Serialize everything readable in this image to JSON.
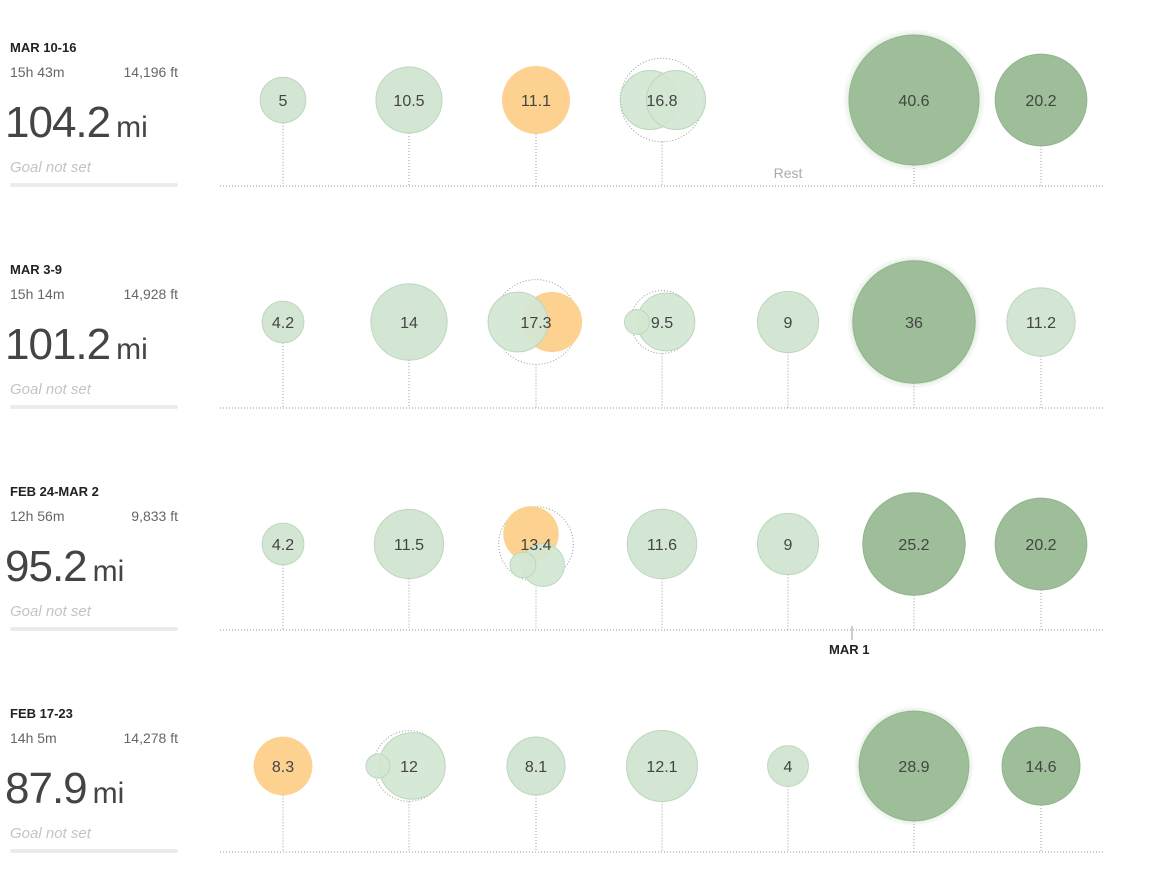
{
  "colors": {
    "light_green": "#d3e6d3",
    "light_green_stroke": "#bcd7bc",
    "dark_green": "#9dbe98",
    "dark_green_stroke": "#8fb58a",
    "orange": "#fdd290",
    "text": "#444444",
    "axis": "#9a9a9a",
    "goal_text": "#c4c4c4"
  },
  "weeks": [
    {
      "label": "MAR 10-16",
      "time": "15h 43m",
      "elevation": "14,196 ft",
      "distance": "104.2",
      "unit": "mi",
      "goal": "Goal not set",
      "days": [
        {
          "label": "5",
          "runs": [
            {
              "miles": 5,
              "type": "easy"
            }
          ]
        },
        {
          "label": "10.5",
          "runs": [
            {
              "miles": 10.5,
              "type": "easy"
            }
          ]
        },
        {
          "label": "11.1",
          "runs": [
            {
              "miles": 11.1,
              "type": "workout"
            }
          ]
        },
        {
          "label": "16.8",
          "runs": [
            {
              "miles": 8.4,
              "type": "easy"
            },
            {
              "miles": 8.4,
              "type": "easy"
            }
          ]
        },
        {
          "label": "Rest",
          "rest": true
        },
        {
          "label": "40.6",
          "runs": [
            {
              "miles": 40.6,
              "type": "long",
              "glow": true
            }
          ]
        },
        {
          "label": "20.2",
          "runs": [
            {
              "miles": 20.2,
              "type": "long"
            }
          ]
        }
      ]
    },
    {
      "label": "MAR 3-9",
      "time": "15h 14m",
      "elevation": "14,928 ft",
      "distance": "101.2",
      "unit": "mi",
      "goal": "Goal not set",
      "days": [
        {
          "label": "4.2",
          "runs": [
            {
              "miles": 4.2,
              "type": "easy"
            }
          ]
        },
        {
          "label": "14",
          "runs": [
            {
              "miles": 14,
              "type": "easy"
            }
          ]
        },
        {
          "label": "17.3",
          "runs": [
            {
              "miles": 8.7,
              "type": "workout"
            },
            {
              "miles": 8.6,
              "type": "easy"
            }
          ]
        },
        {
          "label": "9.5",
          "runs": [
            {
              "miles": 8,
              "type": "easy"
            },
            {
              "miles": 1.5,
              "type": "easy"
            }
          ]
        },
        {
          "label": "9",
          "runs": [
            {
              "miles": 9,
              "type": "easy"
            }
          ]
        },
        {
          "label": "36",
          "runs": [
            {
              "miles": 36,
              "type": "long",
              "glow": true
            }
          ]
        },
        {
          "label": "11.2",
          "runs": [
            {
              "miles": 11.2,
              "type": "easy"
            }
          ]
        }
      ]
    },
    {
      "label": "FEB 24-MAR 2",
      "time": "12h 56m",
      "elevation": "9,833 ft",
      "distance": "95.2",
      "unit": "mi",
      "goal": "Goal not set",
      "days": [
        {
          "label": "4.2",
          "runs": [
            {
              "miles": 4.2,
              "type": "easy"
            }
          ]
        },
        {
          "label": "11.5",
          "runs": [
            {
              "miles": 11.5,
              "type": "easy"
            }
          ]
        },
        {
          "label": "13.4",
          "runs": [
            {
              "miles": 7.4,
              "type": "workout"
            },
            {
              "miles": 4.4,
              "type": "easy"
            },
            {
              "miles": 1.6,
              "type": "easy"
            }
          ]
        },
        {
          "label": "11.6",
          "runs": [
            {
              "miles": 11.6,
              "type": "easy"
            }
          ]
        },
        {
          "label": "9",
          "runs": [
            {
              "miles": 9,
              "type": "easy"
            }
          ]
        },
        {
          "label": "25.2",
          "runs": [
            {
              "miles": 25.2,
              "type": "long"
            }
          ]
        },
        {
          "label": "20.2",
          "runs": [
            {
              "miles": 20.2,
              "type": "long"
            }
          ]
        }
      ]
    },
    {
      "label": "FEB 17-23",
      "time": "14h 5m",
      "elevation": "14,278 ft",
      "distance": "87.9",
      "unit": "mi",
      "goal": "Goal not set",
      "days": [
        {
          "label": "8.3",
          "runs": [
            {
              "miles": 8.3,
              "type": "workout"
            }
          ]
        },
        {
          "label": "12",
          "runs": [
            {
              "miles": 10.6,
              "type": "easy"
            },
            {
              "miles": 1.4,
              "type": "easy"
            }
          ]
        },
        {
          "label": "8.1",
          "runs": [
            {
              "miles": 8.1,
              "type": "easy"
            }
          ]
        },
        {
          "label": "12.1",
          "runs": [
            {
              "miles": 12.1,
              "type": "easy"
            }
          ]
        },
        {
          "label": "4",
          "runs": [
            {
              "miles": 4,
              "type": "easy"
            }
          ]
        },
        {
          "label": "28.9",
          "runs": [
            {
              "miles": 28.9,
              "type": "long",
              "glow": true
            }
          ]
        },
        {
          "label": "14.6",
          "runs": [
            {
              "miles": 14.6,
              "type": "long"
            }
          ]
        }
      ]
    }
  ],
  "month_marker": "MAR 1"
}
